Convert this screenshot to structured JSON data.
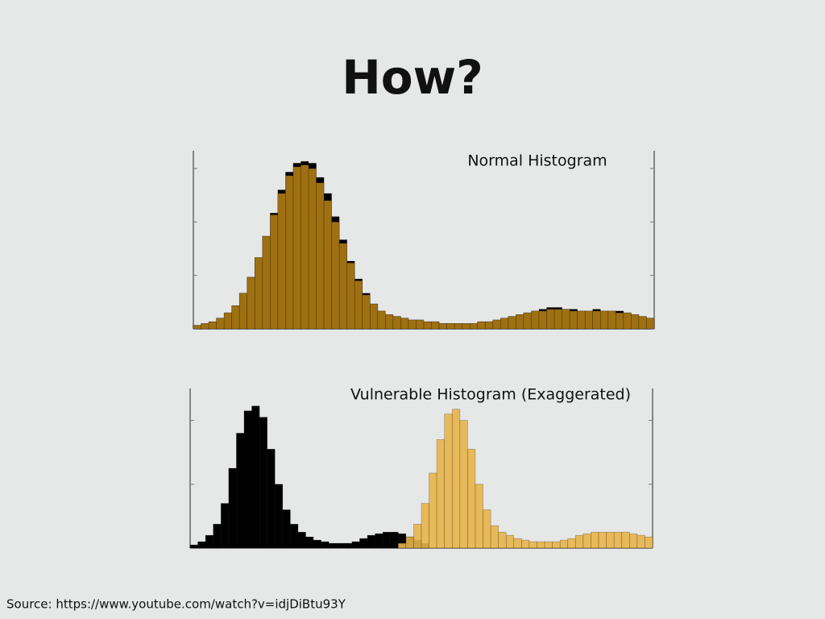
{
  "title": "How?",
  "source": "Source: https://www.youtube.com/watch?v=idjDiBtu93Y",
  "chart_data": [
    {
      "type": "histogram",
      "title": "Normal Histogram",
      "bins": [
        0,
        1,
        2,
        3,
        4,
        5,
        6,
        7,
        8,
        9,
        10,
        11,
        12,
        13,
        14,
        15,
        16,
        17,
        18,
        19,
        20,
        21,
        22,
        23,
        24,
        25,
        26,
        27,
        28,
        29,
        30,
        31,
        32,
        33,
        34,
        35,
        36,
        37,
        38,
        39,
        40,
        41,
        42,
        43,
        44,
        45,
        46,
        47,
        48,
        49,
        50,
        51,
        52,
        53,
        54,
        55,
        56,
        57,
        58,
        59,
        60
      ],
      "xlim": [
        0,
        60
      ],
      "ylim": [
        0,
        100
      ],
      "yticks": [
        0,
        30,
        60,
        90
      ],
      "series": [
        {
          "color": "#000000",
          "values": [
            2,
            3,
            4,
            6,
            9,
            13,
            20,
            29,
            40,
            52,
            65,
            78,
            88,
            93,
            94,
            93,
            85,
            76,
            63,
            50,
            38,
            28,
            20,
            14,
            10,
            8,
            7,
            6,
            5,
            5,
            4,
            4,
            3,
            3,
            3,
            3,
            3,
            4,
            4,
            5,
            6,
            7,
            8,
            9,
            10,
            11,
            12,
            12,
            11,
            11,
            10,
            10,
            11,
            10,
            10,
            10,
            9,
            8,
            7,
            6
          ]
        },
        {
          "color": "#b07c14",
          "values": [
            2,
            3,
            4,
            6,
            9,
            13,
            20,
            29,
            40,
            52,
            64,
            76,
            86,
            91,
            92,
            90,
            82,
            72,
            60,
            48,
            37,
            27,
            19,
            14,
            10,
            8,
            7,
            6,
            5,
            5,
            4,
            4,
            3,
            3,
            3,
            3,
            3,
            4,
            4,
            5,
            6,
            7,
            8,
            9,
            10,
            10,
            11,
            11,
            11,
            10,
            10,
            10,
            10,
            10,
            10,
            9,
            9,
            8,
            7,
            6
          ]
        }
      ]
    },
    {
      "type": "histogram",
      "title": "Vulnerable Histogram (Exaggerated)",
      "bins": [
        0,
        1,
        2,
        3,
        4,
        5,
        6,
        7,
        8,
        9,
        10,
        11,
        12,
        13,
        14,
        15,
        16,
        17,
        18,
        19,
        20,
        21,
        22,
        23,
        24,
        25,
        26,
        27,
        28,
        29,
        30,
        31,
        32,
        33,
        34,
        35,
        36,
        37,
        38,
        39,
        40,
        41,
        42,
        43,
        44,
        45,
        46,
        47,
        48,
        49,
        50,
        51,
        52,
        53,
        54,
        55,
        56,
        57,
        58,
        59,
        60
      ],
      "xlim": [
        0,
        60
      ],
      "ylim": [
        0,
        100
      ],
      "yticks": [
        0,
        40,
        80
      ],
      "series": [
        {
          "color": "#000000",
          "values": [
            2,
            4,
            8,
            15,
            28,
            50,
            72,
            86,
            89,
            82,
            62,
            40,
            24,
            15,
            10,
            7,
            5,
            4,
            3,
            3,
            3,
            4,
            6,
            8,
            9,
            10,
            10,
            9,
            7,
            5,
            3,
            0,
            0,
            0,
            0,
            0,
            0,
            0,
            0,
            0,
            0,
            0,
            0,
            0,
            0,
            0,
            0,
            0,
            0,
            0,
            0,
            0,
            0,
            0,
            0,
            0,
            0,
            0,
            0,
            0
          ]
        },
        {
          "color": "#e8b44a",
          "values": [
            0,
            0,
            0,
            0,
            0,
            0,
            0,
            0,
            0,
            0,
            0,
            0,
            0,
            0,
            0,
            0,
            0,
            0,
            0,
            0,
            0,
            0,
            0,
            0,
            0,
            0,
            0,
            3,
            7,
            15,
            28,
            47,
            68,
            84,
            87,
            80,
            62,
            40,
            24,
            14,
            10,
            8,
            6,
            5,
            4,
            4,
            4,
            4,
            5,
            6,
            8,
            9,
            10,
            10,
            10,
            10,
            10,
            9,
            8,
            7
          ]
        }
      ]
    }
  ]
}
